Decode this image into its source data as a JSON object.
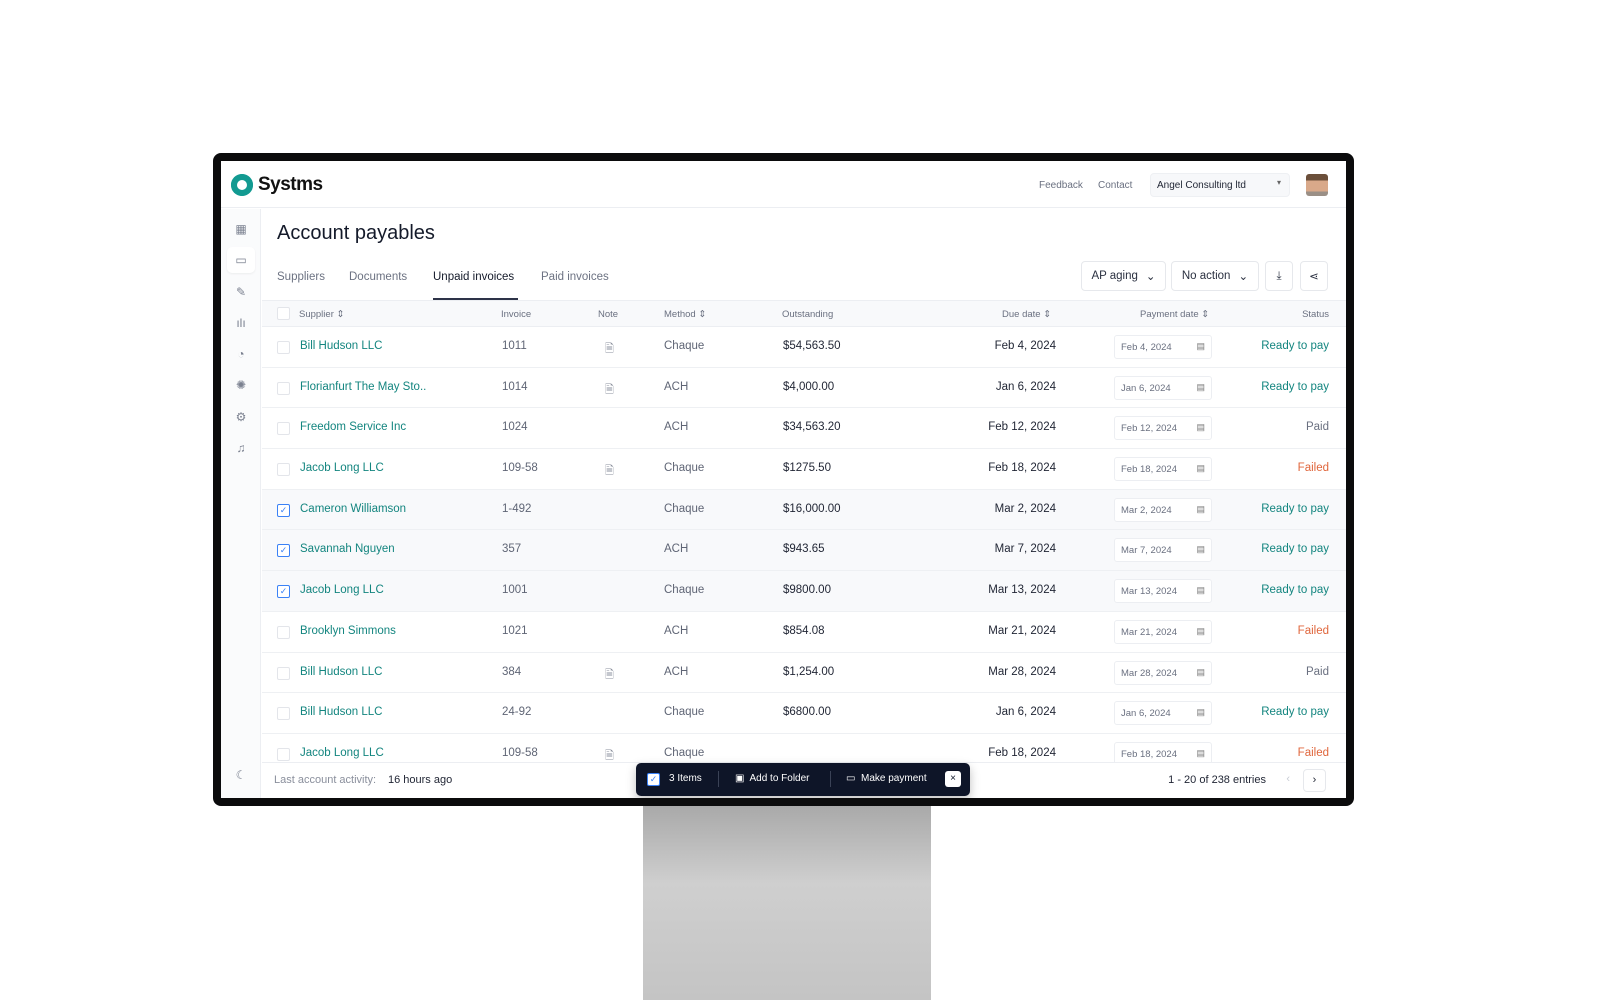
{
  "app": {
    "brand": "Systms",
    "links": [
      "Feedback",
      "Contact"
    ],
    "organization": "Angel Consulting ltd"
  },
  "page": {
    "title": "Account payables",
    "tabs": [
      "Suppliers",
      "Documents",
      "Unpaid invoices",
      "Paid invoices"
    ],
    "active_tab": "Unpaid invoices"
  },
  "toolbar": {
    "aging": "AP aging",
    "action": "No action"
  },
  "table": {
    "columns": [
      "Supplier",
      "Invoice",
      "Note",
      "Method",
      "Outstanding",
      "Due date",
      "Payment date",
      "Status"
    ],
    "rows": [
      {
        "selected": false,
        "supplier": "Bill Hudson LLC",
        "invoice": "1011",
        "note": true,
        "method": "Chaque",
        "outstanding": "$54,563.50",
        "due": "Feb 4, 2024",
        "payment": "Feb 4, 2024",
        "status": "Ready to pay"
      },
      {
        "selected": false,
        "supplier": "Florianfurt The May Sto..",
        "invoice": "1014",
        "note": true,
        "method": "ACH",
        "outstanding": "$4,000.00",
        "due": "Jan 6, 2024",
        "payment": "Jan 6, 2024",
        "status": "Ready to pay"
      },
      {
        "selected": false,
        "supplier": "Freedom Service Inc",
        "invoice": "1024",
        "note": false,
        "method": "ACH",
        "outstanding": "$34,563.20",
        "due": "Feb 12, 2024",
        "payment": "Feb 12, 2024",
        "status": "Paid"
      },
      {
        "selected": false,
        "supplier": "Jacob Long LLC",
        "invoice": "109-58",
        "note": true,
        "method": "Chaque",
        "outstanding": "$1275.50",
        "due": "Feb 18, 2024",
        "payment": "Feb 18, 2024",
        "status": "Failed"
      },
      {
        "selected": true,
        "supplier": "Cameron Williamson",
        "invoice": "1-492",
        "note": false,
        "method": "Chaque",
        "outstanding": "$16,000.00",
        "due": "Mar 2, 2024",
        "payment": "Mar 2, 2024",
        "status": "Ready to pay"
      },
      {
        "selected": true,
        "supplier": "Savannah Nguyen",
        "invoice": "357",
        "note": false,
        "method": "ACH",
        "outstanding": "$943.65",
        "due": "Mar 7, 2024",
        "payment": "Mar 7, 2024",
        "status": "Ready to pay"
      },
      {
        "selected": true,
        "supplier": "Jacob Long LLC",
        "invoice": "1001",
        "note": false,
        "method": "Chaque",
        "outstanding": "$9800.00",
        "due": "Mar 13, 2024",
        "payment": "Mar 13, 2024",
        "status": "Ready to pay"
      },
      {
        "selected": false,
        "supplier": "Brooklyn Simmons",
        "invoice": "1021",
        "note": false,
        "method": "ACH",
        "outstanding": "$854.08",
        "due": "Mar 21, 2024",
        "payment": "Mar 21, 2024",
        "status": "Failed"
      },
      {
        "selected": false,
        "supplier": "Bill Hudson LLC",
        "invoice": "384",
        "note": true,
        "method": "ACH",
        "outstanding": "$1,254.00",
        "due": "Mar 28, 2024",
        "payment": "Mar 28, 2024",
        "status": "Paid"
      },
      {
        "selected": false,
        "supplier": "Bill Hudson LLC",
        "invoice": "24-92",
        "note": false,
        "method": "Chaque",
        "outstanding": "$6800.00",
        "due": "Jan 6, 2024",
        "payment": "Jan 6, 2024",
        "status": "Ready to pay"
      },
      {
        "selected": false,
        "supplier": "Jacob Long LLC",
        "invoice": "109-58",
        "note": true,
        "method": "Chaque",
        "outstanding": "",
        "due": "Feb 18, 2024",
        "payment": "Feb 18, 2024",
        "status": "Failed"
      }
    ]
  },
  "bulk": {
    "count": "3 Items",
    "add_folder": "Add to Folder",
    "make_payment": "Make payment"
  },
  "footer": {
    "activity_label": "Last account activity:",
    "activity_value": "16 hours ago",
    "pagination": "1 - 20 of 238 entries"
  },
  "colors": {
    "brand": "#17a29a",
    "link": "#13857f",
    "ready": "#13857f",
    "failed": "#e0663c",
    "paid": "#6a7080",
    "bulk_bar": "#0e1528"
  }
}
